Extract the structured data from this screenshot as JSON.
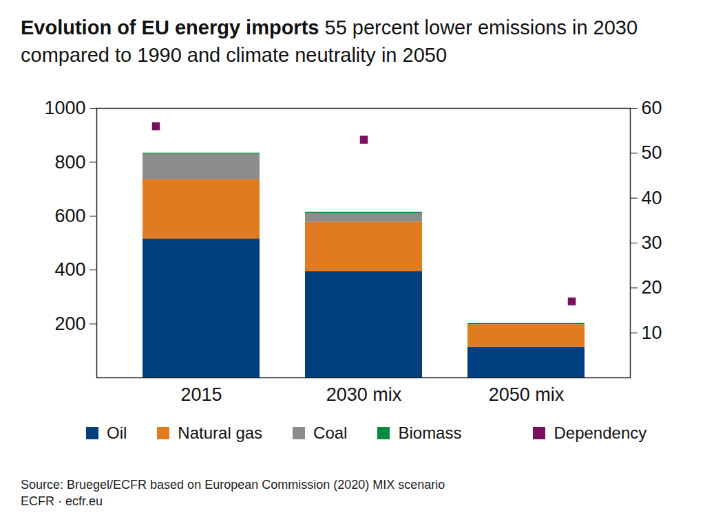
{
  "chart_data": {
    "type": "bar",
    "title": "Evolution of EU energy imports",
    "subtitle": "55 percent lower emissions in 2030 compared to 1990 and climate neutrality in 2050",
    "categories": [
      "2015",
      "2030 mix",
      "2050 mix"
    ],
    "stacked": true,
    "series": [
      {
        "name": "Oil",
        "color": "#003f7f",
        "values": [
          515,
          395,
          113
        ]
      },
      {
        "name": "Natural gas",
        "color": "#e07b1f",
        "values": [
          220,
          183,
          85
        ]
      },
      {
        "name": "Coal",
        "color": "#8c8c8c",
        "values": [
          95,
          32,
          0
        ]
      },
      {
        "name": "Biomass",
        "color": "#0a8a3c",
        "values": [
          4,
          5,
          4
        ]
      },
      {
        "name": "Dependency",
        "type": "scatter",
        "marker": "square",
        "axis": "y2",
        "color": "#7b1060",
        "values": [
          56,
          53,
          17
        ]
      }
    ],
    "ylim": [
      0,
      1000
    ],
    "yticks": [
      200,
      400,
      600,
      800,
      1000
    ],
    "y2lim": [
      0,
      60
    ],
    "y2ticks": [
      10,
      20,
      30,
      40,
      50,
      60
    ],
    "legend": "bottom",
    "source": "Source: Bruegel/ECFR based on European Commission (2020) MIX scenario",
    "credit": "ECFR · ecfr.eu"
  }
}
